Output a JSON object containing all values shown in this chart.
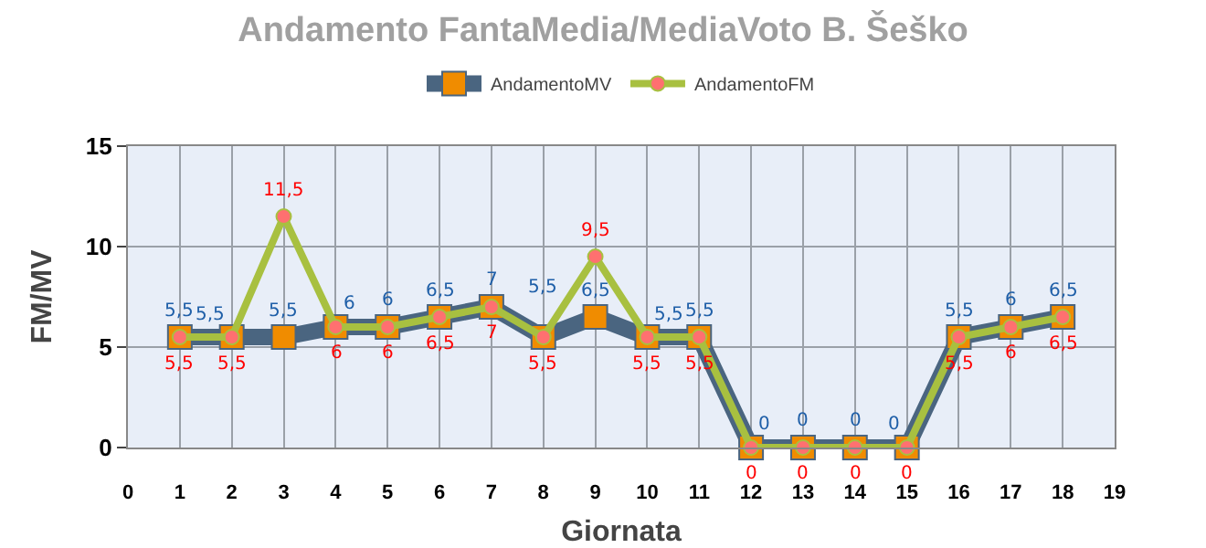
{
  "chart_data": {
    "type": "line",
    "title": "Andamento FantaMedia/MediaVoto B. Šeško",
    "xlabel": "Giornata",
    "ylabel": "FM/MV",
    "x": [
      1,
      2,
      3,
      4,
      5,
      6,
      7,
      8,
      9,
      10,
      11,
      12,
      13,
      14,
      15,
      16,
      17,
      18
    ],
    "series": [
      {
        "name": "AndamentoMV",
        "color": "#4a6580",
        "marker": "square",
        "values": [
          5.5,
          5.5,
          5.5,
          6,
          6,
          6.5,
          7,
          5.5,
          6.5,
          5.5,
          5.5,
          0,
          0,
          0,
          0,
          5.5,
          6,
          6.5
        ],
        "value_labels": [
          "5,5",
          "5,5",
          "5,5",
          "6",
          "6",
          "6,5",
          "7",
          "5,5",
          "6,5",
          "5,5",
          "5,5",
          "0",
          "0",
          "0",
          "0",
          "5,5",
          "6",
          "6,5"
        ]
      },
      {
        "name": "AndamentoFM",
        "color": "#a8c040",
        "marker": "circle",
        "values": [
          5.5,
          5.5,
          11.5,
          6,
          6,
          6.5,
          7,
          5.5,
          9.5,
          5.5,
          5.5,
          0,
          0,
          0,
          0,
          5.5,
          6,
          6.5
        ],
        "value_labels": [
          "5,5",
          "5,5",
          "11,5",
          "6",
          "6",
          "6,5",
          "7",
          "5,5",
          "9,5",
          "5,5",
          "5,5",
          "0",
          "0",
          "0",
          "0",
          "5,5",
          "6",
          "6,5"
        ]
      }
    ],
    "xlim": [
      0,
      19
    ],
    "xticks": [
      0,
      1,
      2,
      3,
      4,
      5,
      6,
      7,
      8,
      9,
      10,
      11,
      12,
      13,
      14,
      15,
      16,
      17,
      18,
      19
    ],
    "ylim": [
      0,
      15
    ],
    "yticks": [
      0,
      5,
      10,
      15
    ],
    "grid": true,
    "legend": "top",
    "line_style": "solid"
  }
}
